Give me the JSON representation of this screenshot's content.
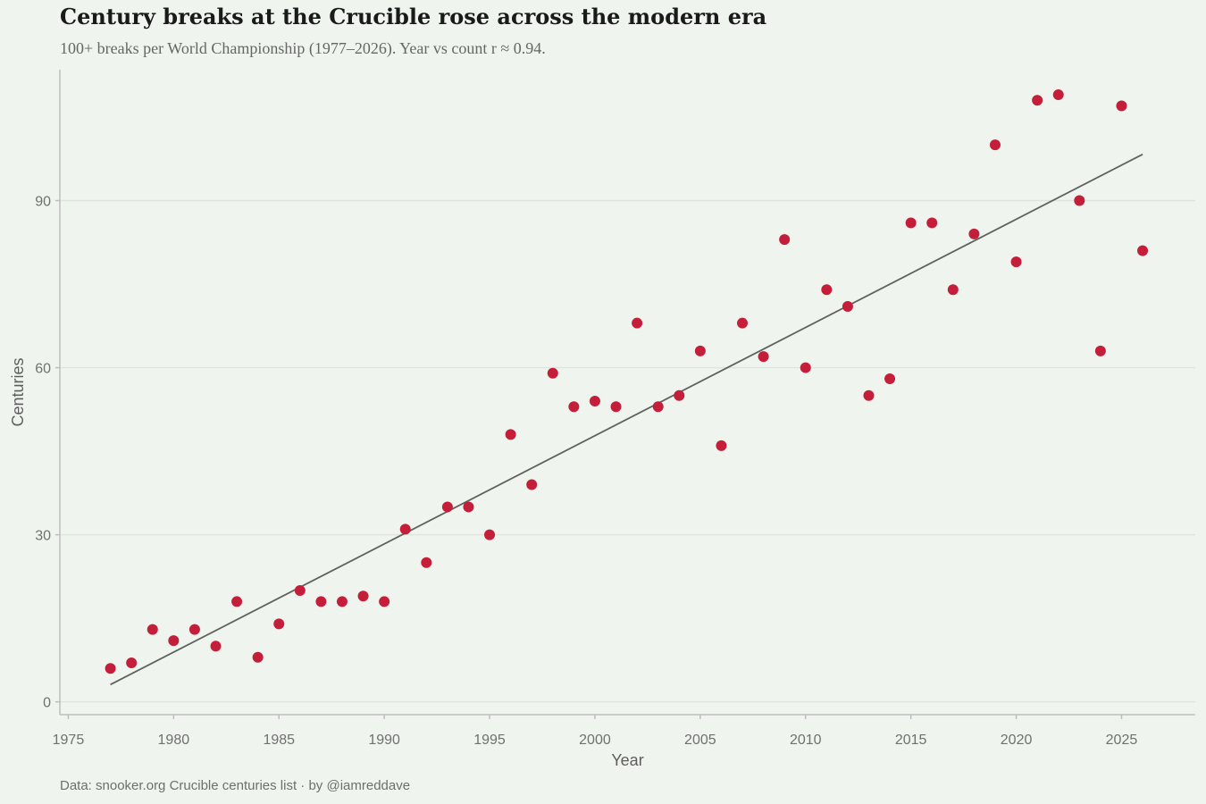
{
  "chart_data": {
    "type": "scatter",
    "title": "Century breaks at the Crucible rose across the modern era",
    "subtitle": "100+ breaks per World Championship (1977–2026). Year vs count r ≈ 0.94.",
    "xlabel": "Year",
    "ylabel": "Centuries",
    "caption": "Data: snooker.org Crucible centuries list · by @iamreddave",
    "xlim": [
      1974.6,
      2028.5
    ],
    "ylim": [
      -2.3,
      113.5
    ],
    "x_ticks": [
      1975,
      1980,
      1985,
      1990,
      1995,
      2000,
      2005,
      2010,
      2015,
      2020,
      2025
    ],
    "y_ticks": [
      0,
      30,
      60,
      90
    ],
    "grid": "horizontal",
    "point_color": "#c41e3a",
    "trend_color": "#5e625e",
    "points": [
      {
        "x": 1977,
        "y": 6
      },
      {
        "x": 1978,
        "y": 7
      },
      {
        "x": 1979,
        "y": 13
      },
      {
        "x": 1980,
        "y": 11
      },
      {
        "x": 1981,
        "y": 13
      },
      {
        "x": 1982,
        "y": 10
      },
      {
        "x": 1983,
        "y": 18
      },
      {
        "x": 1984,
        "y": 8
      },
      {
        "x": 1985,
        "y": 14
      },
      {
        "x": 1986,
        "y": 20
      },
      {
        "x": 1987,
        "y": 18
      },
      {
        "x": 1988,
        "y": 18
      },
      {
        "x": 1989,
        "y": 19
      },
      {
        "x": 1990,
        "y": 18
      },
      {
        "x": 1991,
        "y": 31
      },
      {
        "x": 1992,
        "y": 25
      },
      {
        "x": 1993,
        "y": 35
      },
      {
        "x": 1994,
        "y": 35
      },
      {
        "x": 1995,
        "y": 30
      },
      {
        "x": 1996,
        "y": 48
      },
      {
        "x": 1997,
        "y": 39
      },
      {
        "x": 1998,
        "y": 59
      },
      {
        "x": 1999,
        "y": 53
      },
      {
        "x": 2000,
        "y": 54
      },
      {
        "x": 2001,
        "y": 53
      },
      {
        "x": 2002,
        "y": 68
      },
      {
        "x": 2003,
        "y": 53
      },
      {
        "x": 2004,
        "y": 55
      },
      {
        "x": 2005,
        "y": 63
      },
      {
        "x": 2006,
        "y": 46
      },
      {
        "x": 2007,
        "y": 68
      },
      {
        "x": 2008,
        "y": 62
      },
      {
        "x": 2009,
        "y": 83
      },
      {
        "x": 2010,
        "y": 60
      },
      {
        "x": 2011,
        "y": 74
      },
      {
        "x": 2012,
        "y": 71
      },
      {
        "x": 2013,
        "y": 55
      },
      {
        "x": 2014,
        "y": 58
      },
      {
        "x": 2015,
        "y": 86
      },
      {
        "x": 2016,
        "y": 86
      },
      {
        "x": 2017,
        "y": 74
      },
      {
        "x": 2018,
        "y": 84
      },
      {
        "x": 2019,
        "y": 100
      },
      {
        "x": 2020,
        "y": 79
      },
      {
        "x": 2021,
        "y": 108
      },
      {
        "x": 2022,
        "y": 109
      },
      {
        "x": 2023,
        "y": 90
      },
      {
        "x": 2024,
        "y": 63
      },
      {
        "x": 2025,
        "y": 107
      },
      {
        "x": 2026,
        "y": 81
      }
    ],
    "trend_line": {
      "x": [
        1977,
        2026
      ],
      "y": [
        3.1,
        98.3
      ]
    }
  }
}
